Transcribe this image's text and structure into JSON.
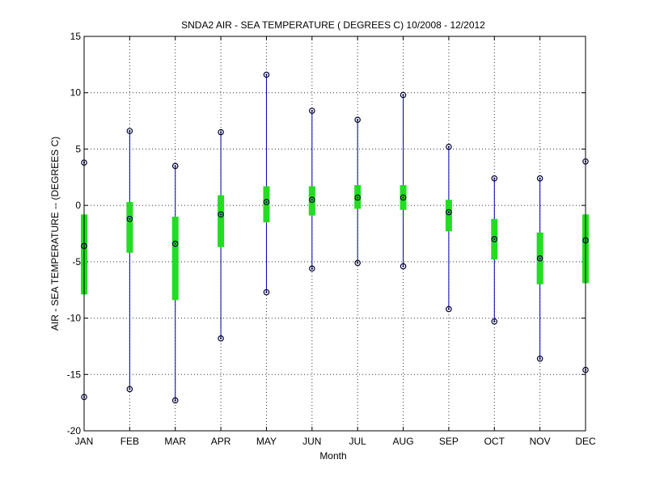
{
  "chart_data": {
    "type": "box",
    "title": "SNDA2  AIR - SEA TEMPERATURE ( DEGREES C) 10/2008 - 12/2012",
    "xlabel": "Month",
    "ylabel": "AIR - SEA TEMPERATURE -- (DEGREES C)",
    "ylim": [
      -20,
      15
    ],
    "yticks": [
      -20,
      -15,
      -10,
      -5,
      0,
      5,
      10,
      15
    ],
    "grid": true,
    "categories": [
      "JAN",
      "FEB",
      "MAR",
      "APR",
      "MAY",
      "JUN",
      "JUL",
      "AUG",
      "SEP",
      "OCT",
      "NOV",
      "DEC"
    ],
    "series": [
      {
        "min": [
          -17.0,
          -16.3,
          -17.3,
          -11.8,
          -7.7,
          -5.6,
          -5.1,
          -5.4,
          -9.2,
          -10.3,
          -13.6,
          -14.6
        ],
        "q1": [
          -7.9,
          -4.2,
          -8.4,
          -3.7,
          -1.5,
          -0.9,
          -0.3,
          -0.4,
          -2.3,
          -4.8,
          -7.0,
          -6.9
        ],
        "median": [
          -3.6,
          -1.2,
          -3.4,
          -0.8,
          0.3,
          0.5,
          0.7,
          0.7,
          -0.6,
          -3.0,
          -4.7,
          -3.1
        ],
        "q3": [
          -0.8,
          0.3,
          -1.0,
          0.9,
          1.7,
          1.7,
          1.8,
          1.8,
          0.5,
          -1.2,
          -2.4,
          -0.8
        ],
        "max": [
          3.8,
          6.6,
          3.5,
          6.5,
          11.6,
          8.4,
          7.6,
          9.8,
          5.2,
          2.4,
          2.4,
          3.9
        ]
      }
    ],
    "colors": {
      "whisker": "#0000aa",
      "box": "#22dd22",
      "marker": "#000033",
      "grid": "#333333",
      "axis": "#000000"
    }
  }
}
